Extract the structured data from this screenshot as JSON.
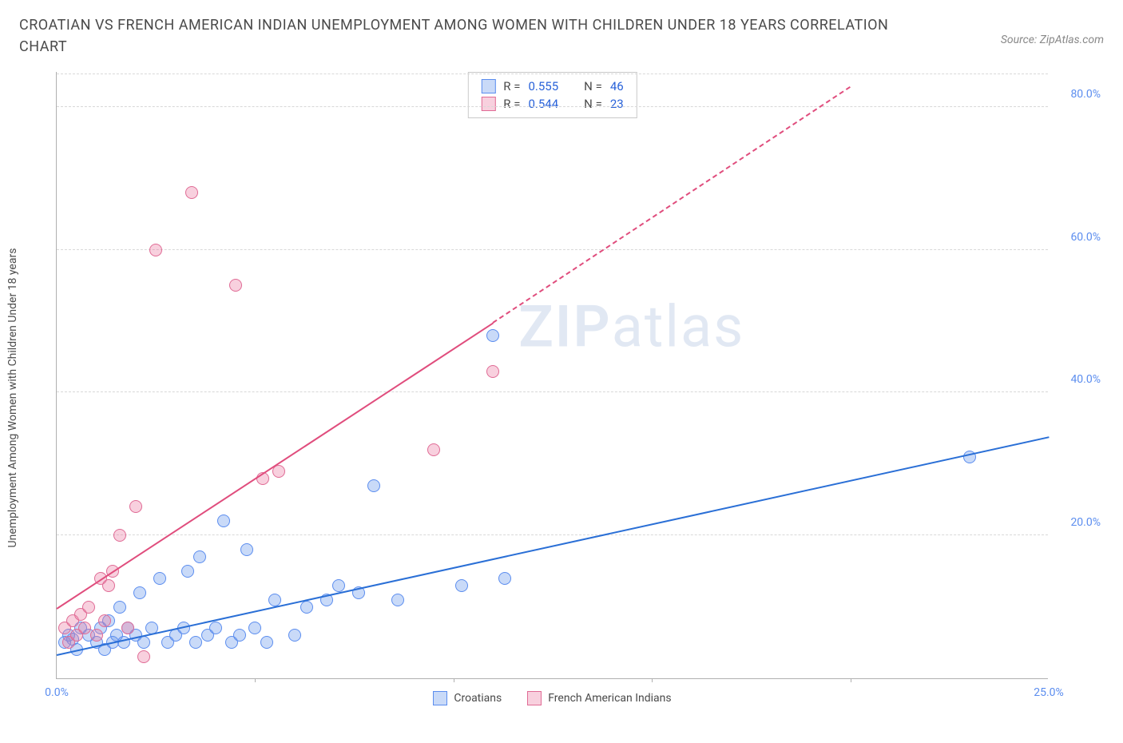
{
  "title": "CROATIAN VS FRENCH AMERICAN INDIAN UNEMPLOYMENT AMONG WOMEN WITH CHILDREN UNDER 18 YEARS CORRELATION CHART",
  "source": "Source: ZipAtlas.com",
  "ylabel": "Unemployment Among Women with Children Under 18 years",
  "watermark_a": "ZIP",
  "watermark_b": "atlas",
  "chart": {
    "type": "scatter",
    "xlim": [
      0,
      25
    ],
    "ylim": [
      0,
      85
    ],
    "xticks": [
      0.0,
      25.0
    ],
    "xtick_labels": [
      "0.0%",
      "25.0%"
    ],
    "xtick_minor": [
      5,
      10,
      15,
      20
    ],
    "yticks": [
      20.0,
      40.0,
      60.0,
      80.0
    ],
    "ytick_labels": [
      "20.0%",
      "40.0%",
      "60.0%",
      "80.0%"
    ],
    "axis_color": "#b0b0b0",
    "grid_color": "#d8d8d8",
    "tick_label_color": "#5b8def",
    "background_color": "#ffffff"
  },
  "series": [
    {
      "name": "Croatians",
      "marker_fill": "rgba(100,150,235,0.35)",
      "marker_stroke": "#5b8def",
      "marker_radius": 8,
      "trend_color": "#2a6fd6",
      "trend_solid": {
        "x1": 0,
        "y1": 3.5,
        "x2": 25,
        "y2": 34
      },
      "r_label": "R =",
      "r_value": "0.555",
      "n_label": "N =",
      "n_value": "46",
      "points": [
        [
          0.2,
          5
        ],
        [
          0.3,
          6
        ],
        [
          0.4,
          5.5
        ],
        [
          0.5,
          4
        ],
        [
          0.6,
          7
        ],
        [
          0.8,
          6
        ],
        [
          1.0,
          5
        ],
        [
          1.1,
          7
        ],
        [
          1.2,
          4
        ],
        [
          1.3,
          8
        ],
        [
          1.4,
          5
        ],
        [
          1.5,
          6
        ],
        [
          1.6,
          10
        ],
        [
          1.7,
          5
        ],
        [
          1.8,
          7
        ],
        [
          2.0,
          6
        ],
        [
          2.1,
          12
        ],
        [
          2.2,
          5
        ],
        [
          2.4,
          7
        ],
        [
          2.6,
          14
        ],
        [
          2.8,
          5
        ],
        [
          3.0,
          6
        ],
        [
          3.2,
          7
        ],
        [
          3.3,
          15
        ],
        [
          3.5,
          5
        ],
        [
          3.6,
          17
        ],
        [
          3.8,
          6
        ],
        [
          4.0,
          7
        ],
        [
          4.2,
          22
        ],
        [
          4.4,
          5
        ],
        [
          4.6,
          6
        ],
        [
          4.8,
          18
        ],
        [
          5.0,
          7
        ],
        [
          5.3,
          5
        ],
        [
          5.5,
          11
        ],
        [
          6.0,
          6
        ],
        [
          6.3,
          10
        ],
        [
          6.8,
          11
        ],
        [
          7.1,
          13
        ],
        [
          7.6,
          12
        ],
        [
          8.0,
          27
        ],
        [
          8.6,
          11
        ],
        [
          10.2,
          13
        ],
        [
          11.3,
          14
        ],
        [
          11.0,
          48
        ],
        [
          23.0,
          31
        ]
      ]
    },
    {
      "name": "French American Indians",
      "marker_fill": "rgba(235,120,160,0.35)",
      "marker_stroke": "#e06b95",
      "marker_radius": 8,
      "trend_color": "#e04d7d",
      "trend_solid": {
        "x1": 0,
        "y1": 10,
        "x2": 11,
        "y2": 50
      },
      "trend_dashed": {
        "x1": 11,
        "y1": 50,
        "x2": 20,
        "y2": 83
      },
      "r_label": "R =",
      "r_value": "0.544",
      "n_label": "N =",
      "n_value": "23",
      "points": [
        [
          0.2,
          7
        ],
        [
          0.3,
          5
        ],
        [
          0.4,
          8
        ],
        [
          0.5,
          6
        ],
        [
          0.6,
          9
        ],
        [
          0.7,
          7
        ],
        [
          0.8,
          10
        ],
        [
          1.0,
          6
        ],
        [
          1.1,
          14
        ],
        [
          1.2,
          8
        ],
        [
          1.3,
          13
        ],
        [
          1.4,
          15
        ],
        [
          1.6,
          20
        ],
        [
          1.8,
          7
        ],
        [
          2.0,
          24
        ],
        [
          2.2,
          3
        ],
        [
          2.5,
          60
        ],
        [
          3.4,
          68
        ],
        [
          4.5,
          55
        ],
        [
          5.2,
          28
        ],
        [
          5.6,
          29
        ],
        [
          9.5,
          32
        ],
        [
          11.0,
          43
        ]
      ]
    }
  ],
  "bottom_legend": [
    {
      "label": "Croatians",
      "fill": "rgba(100,150,235,0.35)",
      "stroke": "#5b8def"
    },
    {
      "label": "French American Indians",
      "fill": "rgba(235,120,160,0.35)",
      "stroke": "#e06b95"
    }
  ]
}
